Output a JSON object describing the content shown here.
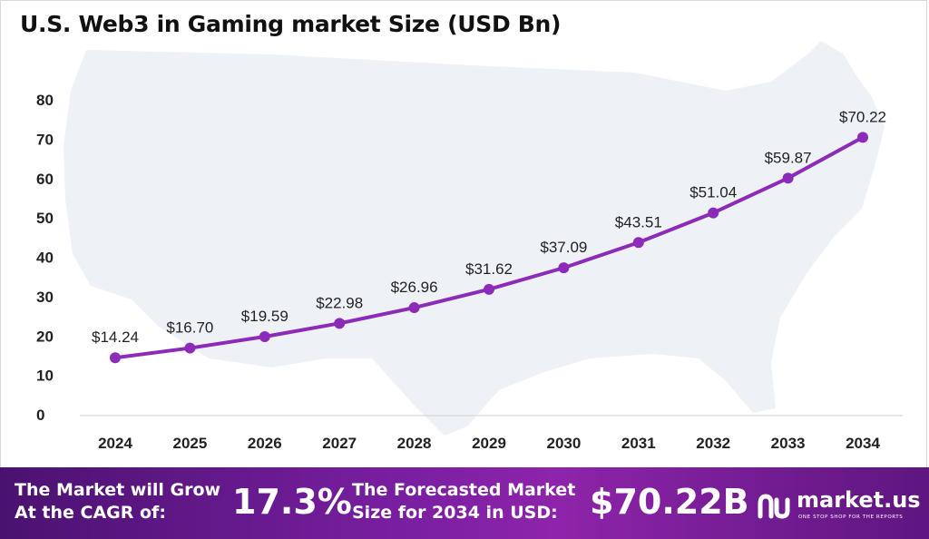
{
  "title": "U.S. Web3 in Gaming market Size (USD Bn)",
  "chart_data": {
    "type": "line",
    "title": "U.S. Web3 in Gaming market Size (USD Bn)",
    "xlabel": "",
    "ylabel": "",
    "x": [
      "2024",
      "2025",
      "2026",
      "2027",
      "2028",
      "2029",
      "2030",
      "2031",
      "2032",
      "2033",
      "2034"
    ],
    "series": [
      {
        "values": [
          14.24,
          16.7,
          19.59,
          22.98,
          26.96,
          31.62,
          37.09,
          43.51,
          51.04,
          59.87,
          70.22
        ],
        "labels": [
          "$14.24",
          "$16.70",
          "$19.59",
          "$22.98",
          "$26.96",
          "$31.62",
          "$37.09",
          "$43.51",
          "$51.04",
          "$59.87",
          "$70.22"
        ],
        "color": "#8b2bb8"
      }
    ],
    "yticks": [
      "0",
      "10",
      "20",
      "30",
      "40",
      "50",
      "60",
      "70",
      "80"
    ],
    "ylim": [
      0,
      80
    ],
    "grid": false,
    "legend": "none",
    "background": "US map silhouette"
  },
  "banner": {
    "cagr_label_line1": "The Market will Grow",
    "cagr_label_line2": "At the CAGR of:",
    "cagr_value": "17.3%",
    "forecast_label_line1": "The Forecasted Market",
    "forecast_label_line2": "Size for 2034 in USD:",
    "forecast_value": "$70.22B",
    "logo_text": "market.us",
    "logo_tagline": "ONE STOP SHOP FOR THE REPORTS"
  },
  "colors": {
    "line": "#8b2bb8",
    "map": "#eef2f7",
    "banner_start": "#4a1270",
    "banner_end": "#8e24aa"
  }
}
